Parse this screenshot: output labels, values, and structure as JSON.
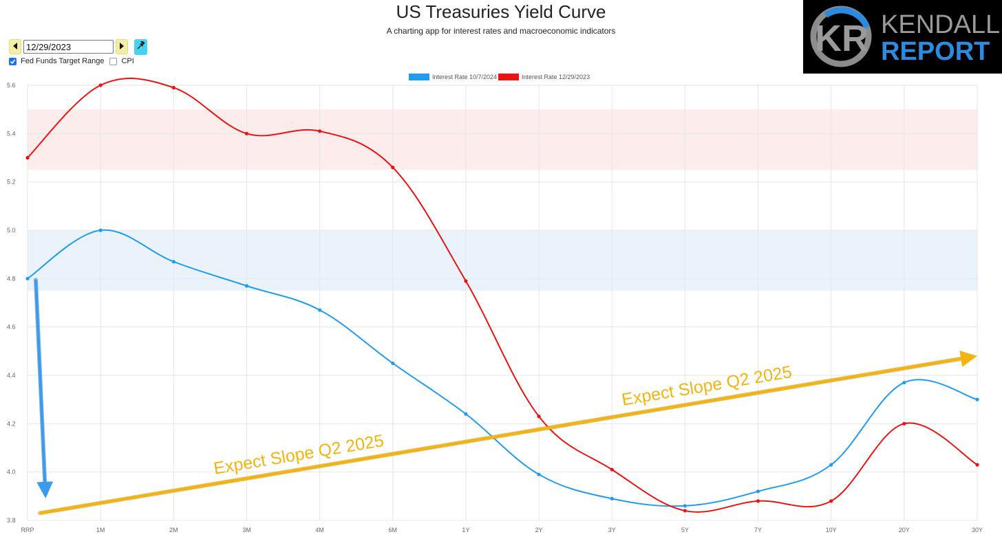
{
  "header": {
    "title": "US Treasuries Yield Curve",
    "subtitle": "A charting app for interest rates and macroeconomic indicators"
  },
  "logo": {
    "line1": "KENDALL",
    "line2": "REPORT",
    "monogram": "KR"
  },
  "controls": {
    "date_value": "12/29/2023",
    "prev_icon": "caret-left-icon",
    "next_icon": "caret-right-icon",
    "pin_icon": "pushpin-icon",
    "checkboxes": [
      {
        "label": "Fed Funds Target Range",
        "checked": true
      },
      {
        "label": "CPI",
        "checked": false
      }
    ]
  },
  "chart_data": {
    "type": "line",
    "categories": [
      "RRP",
      "1M",
      "2M",
      "3M",
      "4M",
      "6M",
      "1Y",
      "2Y",
      "3Y",
      "5Y",
      "7Y",
      "10Y",
      "20Y",
      "30Y"
    ],
    "ylim": [
      3.8,
      5.6
    ],
    "yticks": [
      "3.8",
      "4.0",
      "4.2",
      "4.4",
      "4.6",
      "4.8",
      "5.0",
      "5.2",
      "5.4",
      "5.6"
    ],
    "grid": true,
    "legend_position": "top-center",
    "series": [
      {
        "name": "Interest Rate 10/7/2024",
        "color": "#1e9cf0",
        "values": [
          4.8,
          5.0,
          4.87,
          4.77,
          4.67,
          4.45,
          4.24,
          3.99,
          3.89,
          3.86,
          3.92,
          4.03,
          4.37,
          4.3
        ]
      },
      {
        "name": "Interest Rate 12/29/2023",
        "color": "#ee1111",
        "values": [
          5.3,
          5.6,
          5.59,
          5.4,
          5.41,
          5.26,
          4.79,
          4.23,
          4.01,
          3.84,
          3.88,
          3.88,
          4.2,
          4.03
        ]
      }
    ],
    "bands": [
      {
        "from": 5.25,
        "to": 5.5,
        "color": "#fdecec"
      },
      {
        "from": 4.75,
        "to": 5.0,
        "color": "#eaf3fc"
      }
    ],
    "annotations": [
      {
        "text": "Expect Slope Q2 2025",
        "color": "#f2b411"
      },
      {
        "text": "Expect Slope Q2 2025",
        "color": "#f2b411"
      }
    ],
    "arrows": [
      {
        "color": "#f2b411",
        "from": [
          "RRP",
          3.83
        ],
        "to": [
          "30Y",
          4.48
        ]
      },
      {
        "color": "#3d9bec",
        "from": [
          "RRP",
          4.8
        ],
        "to": [
          "RRP",
          3.88
        ]
      }
    ]
  }
}
